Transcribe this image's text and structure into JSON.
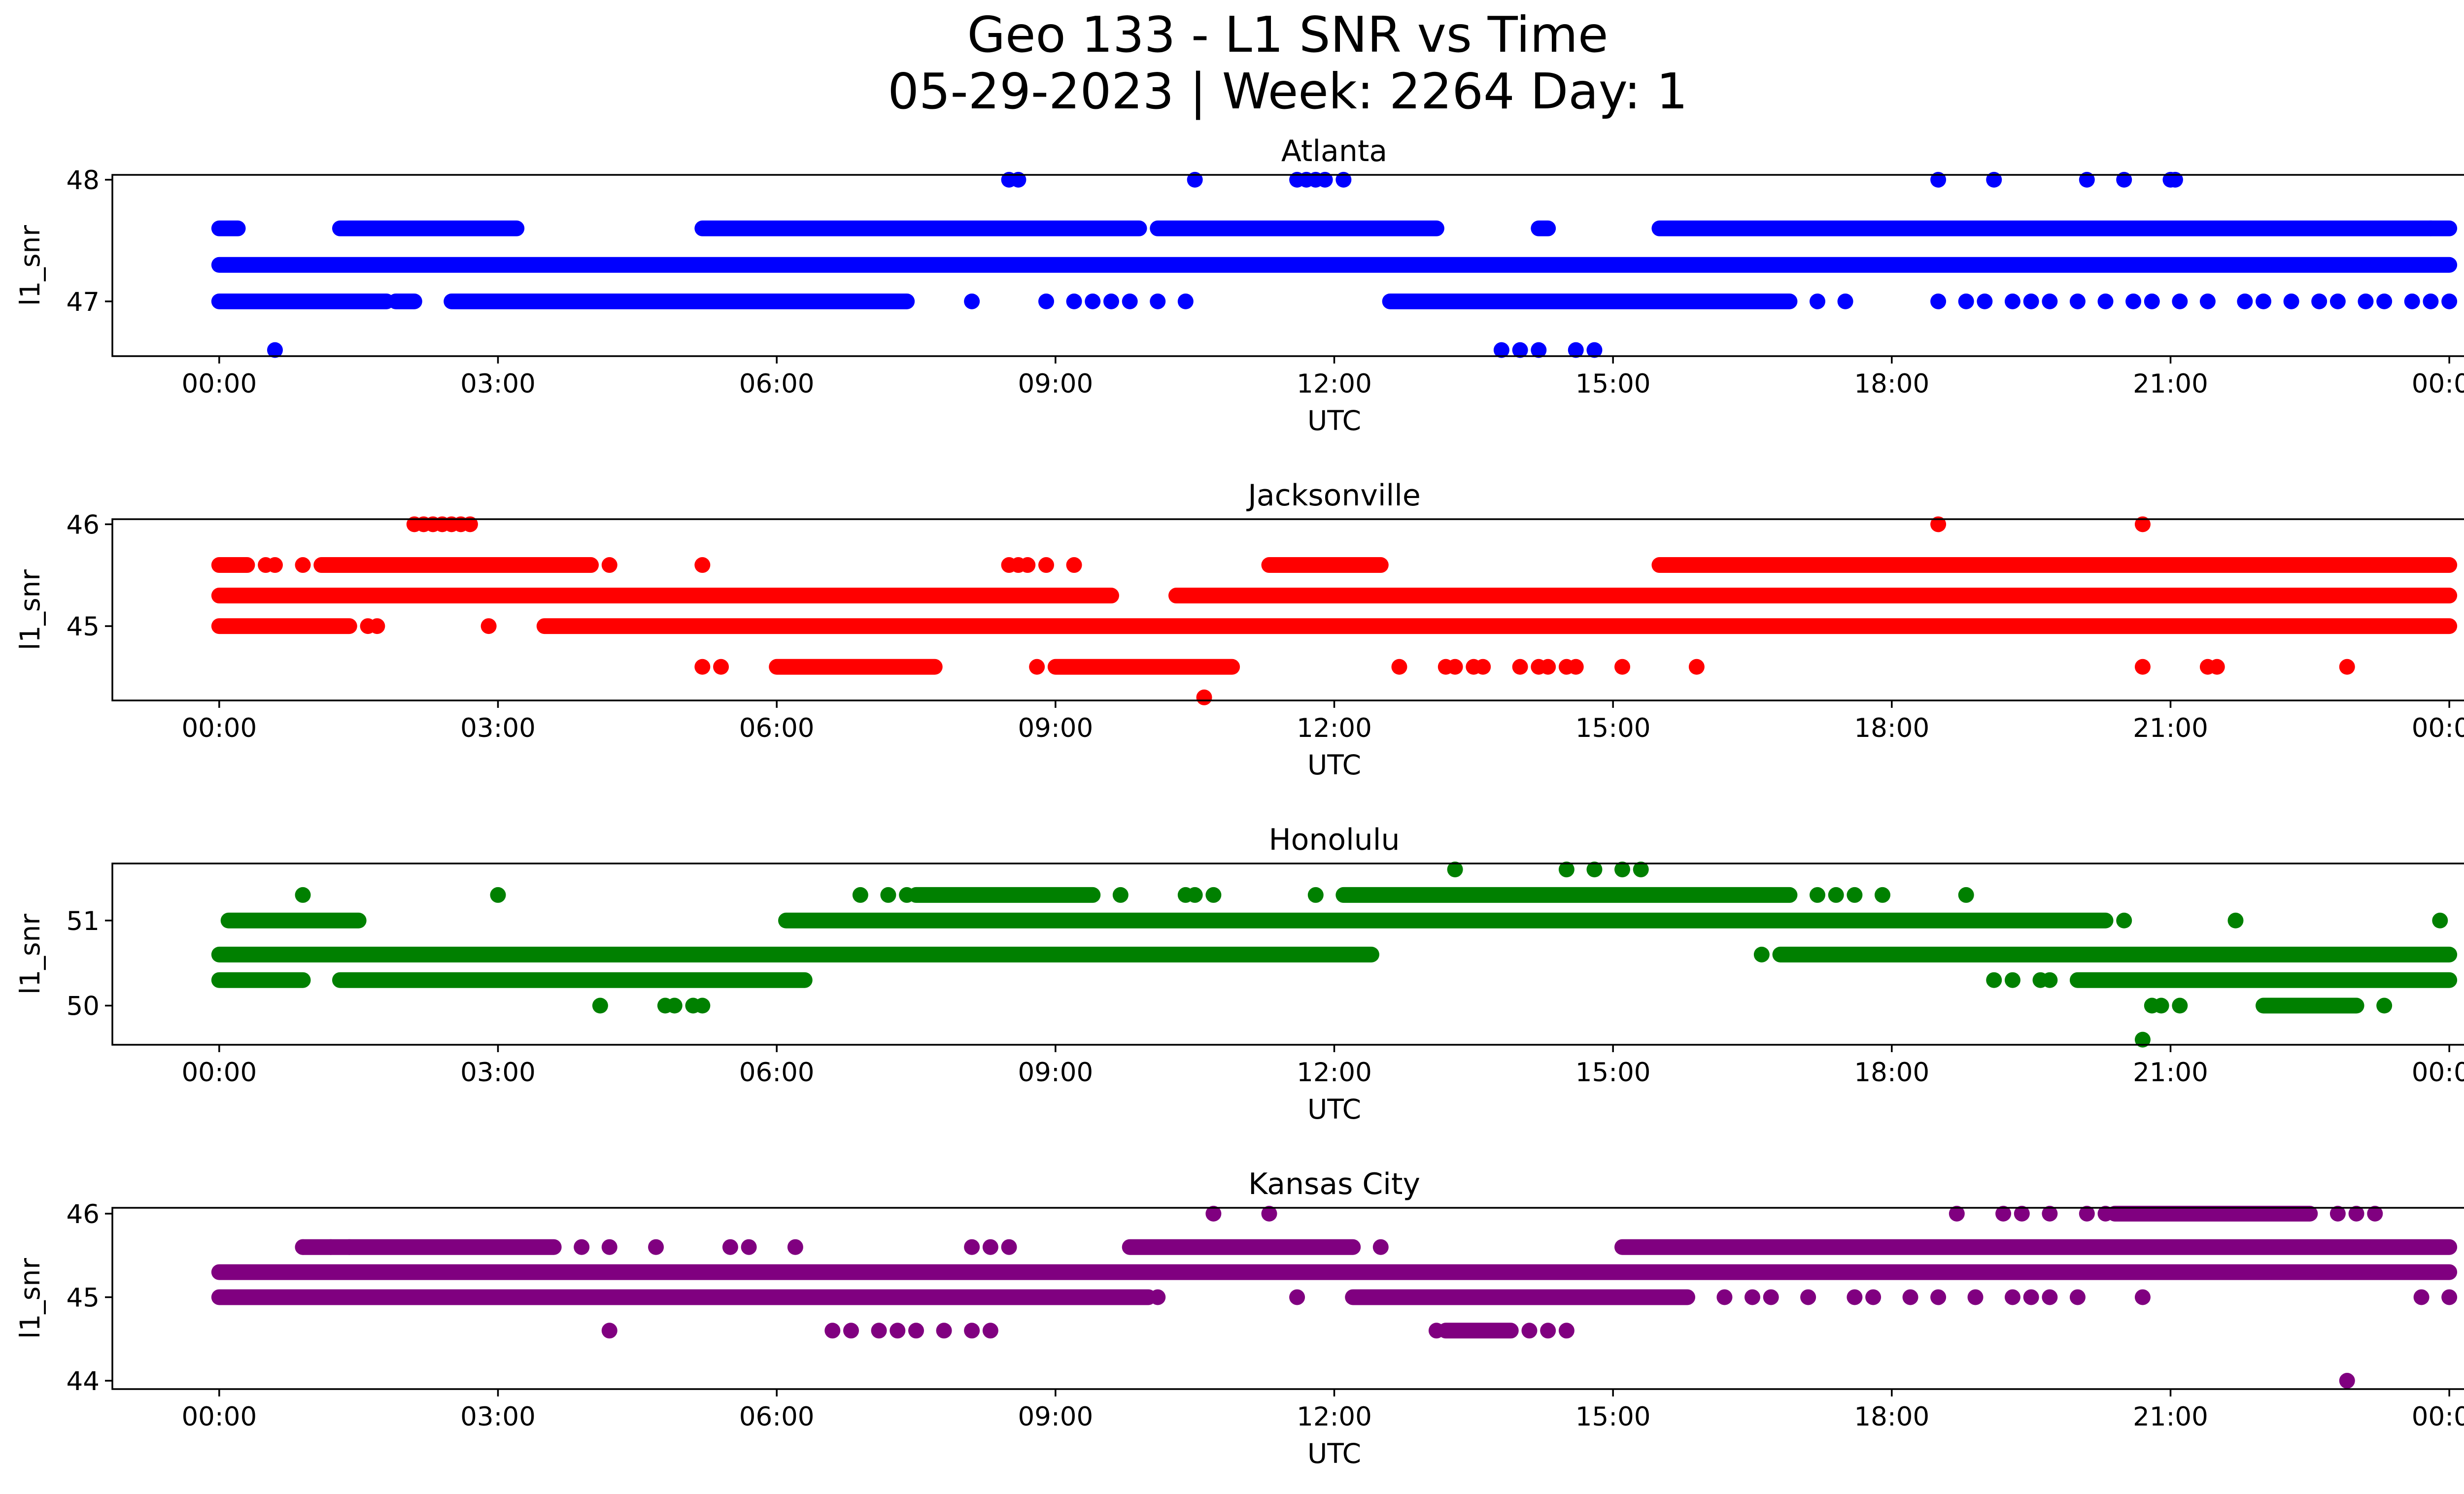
{
  "figure": {
    "title_line1": "Geo 133 - L1 SNR vs Time",
    "title_line2": "05-29-2023 | Week: 2264 Day: 1"
  },
  "chart_data": [
    {
      "type": "scatter",
      "title": "Atlanta",
      "xlabel": "UTC",
      "ylabel": "l1_snr",
      "color": "#0000ff",
      "xlim": [
        -1.15,
        25.15
      ],
      "ylim": [
        46.55,
        48.04
      ],
      "x_ticks": [
        0,
        3,
        6,
        9,
        12,
        15,
        18,
        21,
        24
      ],
      "x_tick_labels": [
        "00:00",
        "03:00",
        "06:00",
        "09:00",
        "12:00",
        "15:00",
        "18:00",
        "21:00",
        "00:00"
      ],
      "y_ticks": [
        47,
        48
      ],
      "y_tick_labels": [
        "47",
        "48"
      ],
      "series": [
        {
          "y": 47.3,
          "segments": [
            [
              0.0,
              24.0
            ]
          ]
        },
        {
          "y": 47.6,
          "segments": [
            [
              0.0,
              0.2
            ],
            [
              1.3,
              3.2
            ],
            [
              5.2,
              9.9
            ],
            [
              10.1,
              13.1
            ],
            [
              14.2,
              14.3
            ],
            [
              15.5,
              23.8
            ],
            [
              23.8,
              24.0
            ]
          ]
        },
        {
          "y": 47.0,
          "segments": [
            [
              0.0,
              1.8
            ],
            [
              1.9,
              2.1
            ],
            [
              2.5,
              7.4
            ],
            [
              12.6,
              16.9
            ]
          ]
        },
        {
          "y": 48.0,
          "points": [
            8.5,
            8.6,
            10.5,
            11.6,
            11.7,
            11.8,
            11.9,
            12.1,
            18.5,
            19.1,
            20.1,
            20.5,
            21.0,
            21.05
          ]
        },
        {
          "y": 47.0,
          "points": [
            8.1,
            8.9,
            9.2,
            9.4,
            9.6,
            9.8,
            10.1,
            10.4,
            17.2,
            17.5,
            18.5,
            18.8,
            19.0,
            19.3,
            19.5,
            19.7,
            20.0,
            20.3,
            20.6,
            20.8,
            21.1,
            21.4,
            21.8,
            22.0,
            22.3,
            22.6,
            22.8,
            23.1,
            23.3,
            23.6,
            23.8,
            24.0
          ]
        },
        {
          "y": 46.6,
          "points": [
            0.6,
            13.8,
            14.0,
            14.2,
            14.6,
            14.8
          ]
        }
      ]
    },
    {
      "type": "scatter",
      "title": "Jacksonville",
      "xlabel": "UTC",
      "ylabel": "l1_snr",
      "color": "#ff0000",
      "xlim": [
        -1.15,
        25.15
      ],
      "ylim": [
        44.27,
        46.05
      ],
      "x_ticks": [
        0,
        3,
        6,
        9,
        12,
        15,
        18,
        21,
        24
      ],
      "x_tick_labels": [
        "00:00",
        "03:00",
        "06:00",
        "09:00",
        "12:00",
        "15:00",
        "18:00",
        "21:00",
        "00:00"
      ],
      "y_ticks": [
        45,
        46
      ],
      "y_tick_labels": [
        "45",
        "46"
      ],
      "series": [
        {
          "y": 45.3,
          "segments": [
            [
              0.0,
              9.6
            ],
            [
              10.3,
              24.0
            ]
          ]
        },
        {
          "y": 45.6,
          "segments": [
            [
              0.0,
              0.3
            ],
            [
              1.1,
              4.0
            ],
            [
              11.3,
              12.5
            ],
            [
              15.5,
              24.0
            ]
          ]
        },
        {
          "y": 45.0,
          "segments": [
            [
              0.0,
              1.4
            ],
            [
              3.5,
              24.0
            ]
          ]
        },
        {
          "y": 45.6,
          "points": [
            0.5,
            0.6,
            0.9,
            4.2,
            5.2,
            8.5,
            8.6,
            8.7,
            8.9,
            9.2
          ]
        },
        {
          "y": 45.0,
          "points": [
            1.6,
            1.7,
            2.9
          ]
        },
        {
          "y": 46.0,
          "points": [
            2.1,
            2.2,
            2.3,
            2.4,
            2.5,
            2.6,
            2.7,
            18.5,
            20.7
          ]
        },
        {
          "y": 44.6,
          "segments": [
            [
              6.0,
              7.7
            ],
            [
              9.0,
              10.9
            ]
          ]
        },
        {
          "y": 44.6,
          "points": [
            5.2,
            5.4,
            8.8,
            12.7,
            13.2,
            13.3,
            13.5,
            13.6,
            14.0,
            14.2,
            14.3,
            14.5,
            14.6,
            15.1,
            15.9,
            20.7,
            21.4,
            21.5,
            22.9
          ]
        },
        {
          "y": 44.3,
          "points": [
            10.6
          ]
        }
      ]
    },
    {
      "type": "scatter",
      "title": "Honolulu",
      "xlabel": "UTC",
      "ylabel": "l1_snr",
      "color": "#008000",
      "xlim": [
        -1.15,
        25.15
      ],
      "ylim": [
        49.54,
        51.67
      ],
      "x_ticks": [
        0,
        3,
        6,
        9,
        12,
        15,
        18,
        21,
        24
      ],
      "x_tick_labels": [
        "00:00",
        "03:00",
        "06:00",
        "09:00",
        "12:00",
        "15:00",
        "18:00",
        "21:00",
        "00:00"
      ],
      "y_ticks": [
        50,
        51
      ],
      "y_tick_labels": [
        "50",
        "51"
      ],
      "series": [
        {
          "y": 50.6,
          "segments": [
            [
              0.0,
              12.4
            ],
            [
              16.8,
              24.0
            ]
          ]
        },
        {
          "y": 50.3,
          "segments": [
            [
              0.0,
              0.9
            ],
            [
              1.3,
              6.3
            ],
            [
              20.0,
              24.0
            ]
          ]
        },
        {
          "y": 51.0,
          "segments": [
            [
              0.1,
              1.5
            ],
            [
              6.1,
              20.3
            ]
          ]
        },
        {
          "y": 51.3,
          "segments": [
            [
              7.5,
              9.4
            ],
            [
              12.1,
              16.9
            ]
          ]
        },
        {
          "y": 51.3,
          "points": [
            0.9,
            3.0,
            6.9,
            7.2,
            7.4,
            9.7,
            10.4,
            10.5,
            10.7,
            11.8,
            17.2,
            17.4,
            17.6,
            17.9,
            18.8
          ]
        },
        {
          "y": 51.6,
          "points": [
            13.3,
            14.5,
            14.8,
            15.1,
            15.3
          ]
        },
        {
          "y": 51.0,
          "points": [
            20.5,
            21.7,
            23.9
          ]
        },
        {
          "y": 50.6,
          "points": [
            16.6
          ]
        },
        {
          "y": 50.3,
          "points": [
            19.1,
            19.3,
            19.6,
            19.7
          ]
        },
        {
          "y": 50.0,
          "points": [
            4.1,
            4.8,
            4.9,
            5.1,
            5.2,
            20.8,
            20.9,
            21.1
          ]
        },
        {
          "y": 50.0,
          "segments": [
            [
              22.0,
              23.0
            ]
          ]
        },
        {
          "y": 50.0,
          "points": [
            23.3
          ]
        },
        {
          "y": 49.6,
          "points": [
            20.7
          ]
        }
      ]
    },
    {
      "type": "scatter",
      "title": "Kansas City",
      "xlabel": "UTC",
      "ylabel": "l1_snr",
      "color": "#800080",
      "xlim": [
        -1.15,
        25.15
      ],
      "ylim": [
        43.9,
        46.07
      ],
      "x_ticks": [
        0,
        3,
        6,
        9,
        12,
        15,
        18,
        21,
        24
      ],
      "x_tick_labels": [
        "00:00",
        "03:00",
        "06:00",
        "09:00",
        "12:00",
        "15:00",
        "18:00",
        "21:00",
        "00:00"
      ],
      "y_ticks": [
        44,
        45,
        46
      ],
      "y_tick_labels": [
        "44",
        "45",
        "46"
      ],
      "series": [
        {
          "y": 45.3,
          "segments": [
            [
              0.0,
              24.0
            ]
          ]
        },
        {
          "y": 45.0,
          "segments": [
            [
              0.0,
              10.0
            ],
            [
              12.2,
              15.8
            ]
          ]
        },
        {
          "y": 45.6,
          "segments": [
            [
              0.9,
              3.6
            ],
            [
              9.8,
              12.2
            ],
            [
              15.1,
              24.0
            ]
          ]
        },
        {
          "y": 45.6,
          "points": [
            0.9,
            1.2,
            1.4,
            3.9,
            4.2,
            4.7,
            5.5,
            5.7,
            6.2,
            8.1,
            8.3,
            8.5,
            12.5
          ]
        },
        {
          "y": 45.0,
          "points": [
            10.1,
            11.6,
            16.2,
            16.5,
            16.7,
            17.1,
            17.6,
            17.8,
            18.2,
            18.5,
            18.9,
            19.3,
            19.5,
            19.7,
            20.0,
            20.7,
            23.7,
            24.0
          ]
        },
        {
          "y": 46.0,
          "points": [
            10.7,
            11.3,
            18.7,
            19.2,
            19.4,
            19.7,
            20.1,
            20.3
          ]
        },
        {
          "y": 46.0,
          "segments": [
            [
              20.4,
              22.5
            ]
          ]
        },
        {
          "y": 46.0,
          "points": [
            22.8,
            23.0,
            23.2
          ]
        },
        {
          "y": 44.6,
          "points": [
            4.2,
            6.6,
            6.8,
            7.1,
            7.3,
            7.5,
            7.8,
            8.1,
            8.3,
            13.1,
            14.1,
            14.3,
            14.5
          ]
        },
        {
          "y": 44.6,
          "segments": [
            [
              13.2,
              13.9
            ]
          ]
        },
        {
          "y": 44.0,
          "points": [
            22.9
          ]
        }
      ]
    }
  ]
}
